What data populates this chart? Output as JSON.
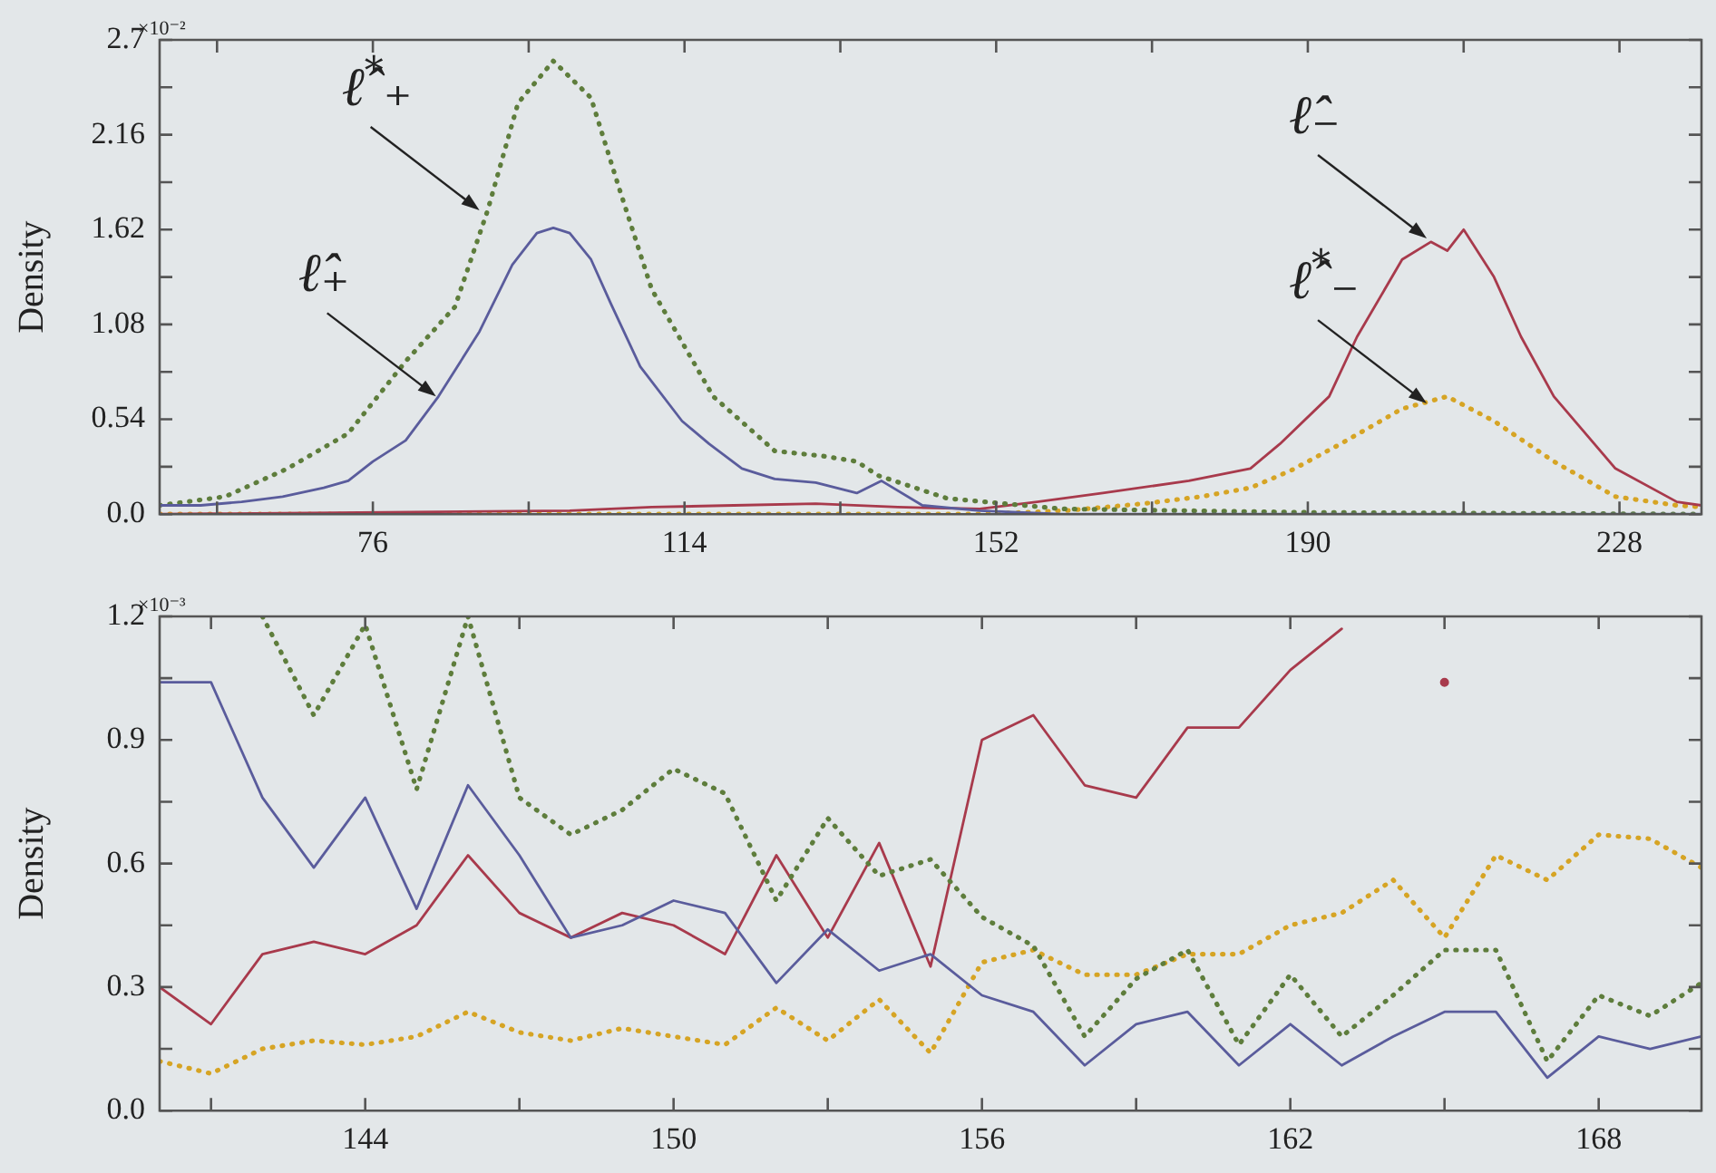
{
  "chart_data": [
    {
      "type": "line",
      "ylabel": "Density",
      "xlim": [
        50,
        238
      ],
      "xticks": [
        {
          "value": 57,
          "label": null
        },
        76,
        {
          "value": 95,
          "label": null
        },
        114,
        {
          "value": 133,
          "label": null
        },
        152,
        {
          "value": 171,
          "label": null
        },
        190,
        {
          "value": 209,
          "label": null
        },
        228
      ],
      "ylim": [
        0,
        2.7
      ],
      "yticks": [
        {
          "value": 0,
          "label": "0.0"
        },
        {
          "value": 0.27,
          "label": null
        },
        0.54,
        {
          "value": 0.81,
          "label": null
        },
        1.08,
        {
          "value": 1.35,
          "label": null
        },
        1.62,
        {
          "value": 1.89,
          "label": null
        },
        2.16,
        {
          "value": 2.43,
          "label": null
        },
        2.7
      ],
      "series": [
        {
          "color": "#5a5c9c",
          "line_style": "solid",
          "x": [
            50,
            55,
            60,
            65,
            70,
            73,
            76,
            80,
            84,
            89,
            93,
            96,
            98,
            100,
            102.6,
            105,
            108.6,
            113.7,
            117,
            121,
            125,
            130,
            135,
            138,
            143,
            150,
            160,
            238
          ],
          "values": [
            0.05,
            0.05,
            0.07,
            0.1,
            0.15,
            0.19,
            0.3,
            0.42,
            0.67,
            1.04,
            1.42,
            1.6,
            1.63,
            1.6,
            1.45,
            1.2,
            0.84,
            0.53,
            0.4,
            0.26,
            0.2,
            0.18,
            0.12,
            0.19,
            0.05,
            0.02,
            0,
            0
          ]
        },
        {
          "color": "#5e7d3c",
          "line_style": "dotted",
          "x": [
            50,
            58,
            65.6,
            73,
            80,
            86,
            90,
            93.7,
            98,
            102.6,
            106,
            110,
            117.5,
            125,
            131,
            135,
            137.6,
            146,
            160,
            190,
            238
          ],
          "values": [
            0.05,
            0.1,
            0.26,
            0.46,
            0.87,
            1.18,
            1.73,
            2.34,
            2.58,
            2.37,
            1.86,
            1.28,
            0.67,
            0.36,
            0.33,
            0.3,
            0.22,
            0.09,
            0.03,
            0.01,
            0
          ]
        },
        {
          "color": "#a83a4c",
          "line_style": "solid",
          "x": [
            50,
            100,
            110,
            120,
            130,
            140,
            150,
            157,
            165,
            175.5,
            183,
            186.6,
            192.6,
            196,
            201.5,
            205,
            207,
            209,
            212.7,
            216,
            220,
            227.5,
            235,
            238
          ],
          "values": [
            0,
            0.02,
            0.04,
            0.05,
            0.06,
            0.04,
            0.03,
            0.07,
            0.12,
            0.19,
            0.26,
            0.4,
            0.67,
            1.01,
            1.45,
            1.55,
            1.5,
            1.62,
            1.35,
            1.01,
            0.67,
            0.26,
            0.07,
            0.05
          ]
        },
        {
          "color": "#d6a424",
          "line_style": "dotted",
          "x": [
            50,
            150,
            160.5,
            170,
            177,
            183,
            188,
            194,
            201.5,
            207,
            212.7,
            220,
            227.5,
            235,
            238
          ],
          "values": [
            0,
            0,
            0.02,
            0.06,
            0.1,
            0.15,
            0.25,
            0.4,
            0.6,
            0.67,
            0.53,
            0.3,
            0.1,
            0.05,
            0.04
          ]
        }
      ],
      "annotations": [
        "×10⁻²",
        {
          "text": "ℓ̂$^{*}$₊",
          "x": 89,
          "y": 1.73
        },
        {
          "text": "ℓ̂₊",
          "x": 83.7,
          "y": 0.67
        },
        {
          "text": "ℓ̂₋",
          "x": 204.5,
          "y": 1.57
        },
        {
          "text": "ℓ̂$^{*}$₋",
          "x": 204.5,
          "y": 0.63
        }
      ]
    },
    {
      "type": "line",
      "ylabel": "Density",
      "xlim": [
        140,
        170
      ],
      "xticks": [
        {
          "value": 141,
          "label": null
        },
        144,
        {
          "value": 147,
          "label": null
        },
        150,
        {
          "value": 153,
          "label": null
        },
        156,
        {
          "value": 159,
          "label": null
        },
        162,
        {
          "value": 165,
          "label": null
        },
        168
      ],
      "ylim": [
        0,
        1.2
      ],
      "yticks": [
        {
          "value": 0,
          "label": "0.0"
        },
        {
          "value": 0.15,
          "label": null
        },
        0.3,
        {
          "value": 0.45,
          "label": null
        },
        0.6,
        {
          "value": 0.75,
          "label": null
        },
        0.9,
        {
          "value": 1.05,
          "label": null
        },
        1.2
      ],
      "x": [
        140,
        141,
        142,
        143,
        144,
        145,
        146,
        147,
        148,
        149,
        150,
        151,
        152,
        153,
        154,
        155,
        156,
        157,
        158,
        159,
        160,
        161,
        162,
        163,
        164,
        165,
        166,
        167,
        168,
        169,
        170
      ],
      "series": [
        {
          "color": "#5a5c9c",
          "line_style": "solid",
          "values": [
            1.04,
            1.04,
            0.76,
            0.59,
            0.76,
            0.49,
            0.79,
            0.62,
            0.42,
            0.45,
            0.51,
            0.48,
            0.31,
            0.44,
            0.34,
            0.38,
            0.28,
            0.24,
            0.11,
            0.21,
            0.24,
            0.11,
            0.21,
            0.11,
            0.18,
            0.24,
            0.24,
            0.08,
            0.18,
            0.15,
            0.18
          ]
        },
        {
          "color": "#5e7d3c",
          "line_style": "dotted",
          "values": [
            null,
            null,
            1.2,
            0.96,
            1.18,
            0.78,
            1.2,
            0.76,
            0.67,
            0.73,
            0.83,
            0.77,
            0.51,
            0.71,
            0.57,
            0.61,
            0.47,
            0.4,
            0.18,
            0.32,
            0.39,
            0.16,
            0.33,
            0.18,
            0.28,
            0.39,
            0.39,
            0.12,
            0.28,
            0.23,
            0.31
          ]
        },
        {
          "color": "#a83a4c",
          "line_style": "solid",
          "values": [
            0.3,
            0.21,
            0.38,
            0.41,
            0.38,
            0.45,
            0.62,
            0.48,
            0.42,
            0.48,
            0.45,
            0.38,
            0.62,
            0.42,
            0.65,
            0.35,
            0.9,
            0.96,
            0.79,
            0.76,
            0.93,
            0.93,
            1.07,
            1.17,
            null,
            1.04,
            null,
            null,
            null,
            null,
            null
          ]
        },
        {
          "color": "#d6a424",
          "line_style": "dotted",
          "values": [
            0.12,
            0.09,
            0.15,
            0.17,
            0.16,
            0.18,
            0.24,
            0.19,
            0.17,
            0.2,
            0.18,
            0.16,
            0.25,
            0.17,
            0.27,
            0.14,
            0.36,
            0.39,
            0.33,
            0.33,
            0.38,
            0.38,
            0.45,
            0.48,
            0.56,
            0.42,
            0.62,
            0.56,
            0.67,
            0.66,
            0.59
          ]
        }
      ],
      "annotations": [
        "×10⁻³"
      ]
    }
  ]
}
